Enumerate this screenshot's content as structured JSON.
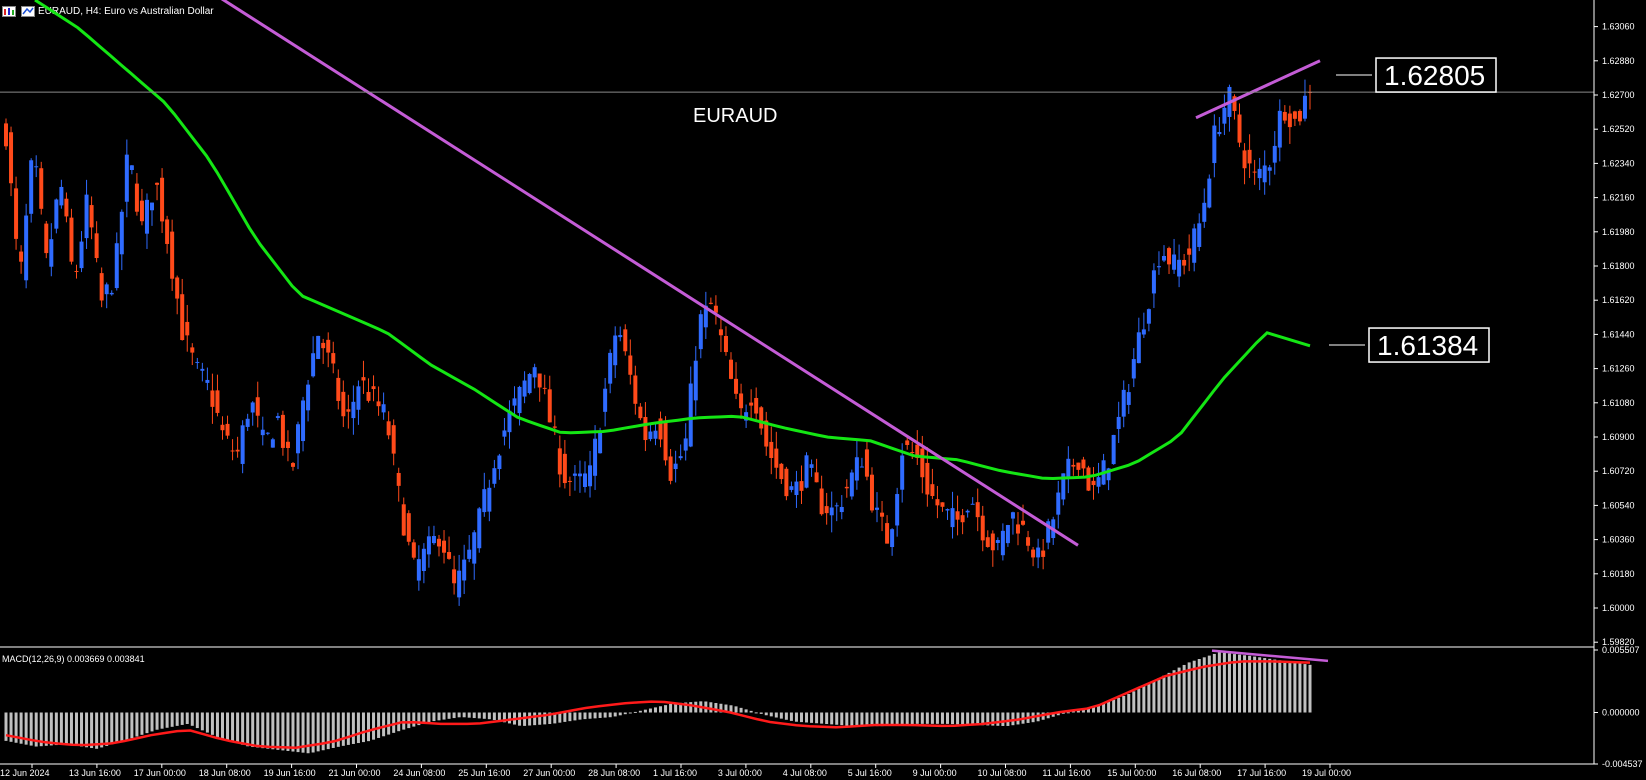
{
  "header": {
    "symbol_line": "EURAUD, H4:  Euro vs Australian Dollar"
  },
  "chart_data": [
    {
      "type": "candlestick",
      "annotation_text": "EURAUD",
      "colors": {
        "bull": "#2f6bff",
        "bear": "#ff4a1a",
        "ma": "#14e614",
        "trendline": "#c45cd6",
        "grid": "#2a2a2a",
        "axis": "#ffffff",
        "hline": "#8a8a8a"
      },
      "ylim": [
        1.598,
        1.632
      ],
      "y_ticks": [
        "1.63060",
        "1.62880",
        "1.62700",
        "1.62520",
        "1.62340",
        "1.62160",
        "1.61980",
        "1.61800",
        "1.61620",
        "1.61440",
        "1.61260",
        "1.61080",
        "1.60900",
        "1.60720",
        "1.60540",
        "1.60360",
        "1.60180",
        "1.60000",
        "1.59820"
      ],
      "x_ticks": [
        "12 Jun 2024",
        "13 Jun 16:00",
        "17 Jun 00:00",
        "18 Jun 08:00",
        "19 Jun 16:00",
        "21 Jun 00:00",
        "24 Jun 08:00",
        "25 Jun 16:00",
        "27 Jun 00:00",
        "28 Jun 08:00",
        "1 Jul 16:00",
        "3 Jul 00:00",
        "4 Jul 08:00",
        "5 Jul 16:00",
        "9 Jul 00:00",
        "10 Jul 08:00",
        "11 Jul 16:00",
        "15 Jul 00:00",
        "16 Jul 08:00",
        "17 Jul 16:00",
        "19 Jul 00:00"
      ],
      "current_price": "1.62805",
      "ma_price": "1.61384",
      "close_anchors": [
        1.625,
        1.617,
        1.624,
        1.618,
        1.6225,
        1.617,
        1.6215,
        1.616,
        1.6175,
        1.624,
        1.62,
        1.6225,
        1.619,
        1.6145,
        1.6125,
        1.6115,
        1.609,
        1.608,
        1.611,
        1.6085,
        1.61,
        1.607,
        1.6115,
        1.6145,
        1.6125,
        1.6095,
        1.612,
        1.611,
        1.61,
        1.6055,
        1.602,
        1.603,
        1.604,
        1.601,
        1.6025,
        1.605,
        1.608,
        1.61,
        1.6115,
        1.613,
        1.61,
        1.607,
        1.6065,
        1.607,
        1.611,
        1.615,
        1.612,
        1.609,
        1.61,
        1.607,
        1.6085,
        1.615,
        1.616,
        1.613,
        1.61,
        1.6115,
        1.6085,
        1.607,
        1.606,
        1.6075,
        1.6055,
        1.605,
        1.6065,
        1.608,
        1.605,
        1.6035,
        1.6085,
        1.608,
        1.606,
        1.605,
        1.6045,
        1.606,
        1.604,
        1.603,
        1.605,
        1.604,
        1.6025,
        1.6045,
        1.607,
        1.608,
        1.606,
        1.6075,
        1.61,
        1.613,
        1.616,
        1.619,
        1.618,
        1.6185,
        1.6205,
        1.625,
        1.627,
        1.624,
        1.6225,
        1.6235,
        1.6265,
        1.6255,
        1.6275
      ],
      "ma_anchors": [
        1.632,
        1.6305,
        1.6285,
        1.6265,
        1.6235,
        1.6195,
        1.6165,
        1.6155,
        1.6145,
        1.6128,
        1.6115,
        1.61,
        1.6092,
        1.6093,
        1.6097,
        1.61,
        1.6101,
        1.6095,
        1.609,
        1.6088,
        1.608,
        1.6078,
        1.6072,
        1.6068,
        1.6069,
        1.6076,
        1.609,
        1.612,
        1.6145,
        1.6138
      ]
    },
    {
      "type": "histogram_line",
      "label": "MACD(12,26,9) 0.003669 0.003841",
      "y_ticks": [
        "0.005507",
        "0.000000",
        "-0.004537"
      ],
      "ylim": [
        -0.004537,
        0.005507
      ],
      "colors": {
        "hist": "#c0c0c0",
        "signal": "#ff1a1a",
        "trendline": "#c45cd6"
      },
      "hist_anchors": [
        -0.0025,
        -0.003,
        -0.0028,
        -0.0032,
        -0.0024,
        -0.0015,
        -0.001,
        -0.0022,
        -0.003,
        -0.0033,
        -0.0036,
        -0.003,
        -0.0025,
        -0.0016,
        -0.0008,
        -0.0004,
        -0.0006,
        -0.0012,
        -0.001,
        -0.0006,
        -0.0004,
        0.0002,
        0.0008,
        0.001,
        0.0006,
        -0.0002,
        -0.0008,
        -0.001,
        -0.0012,
        -0.0012,
        -0.001,
        -0.001,
        -0.0011,
        -0.0012,
        -0.0008,
        0.0,
        0.0006,
        0.0016,
        0.003,
        0.0044,
        0.0053,
        0.005,
        0.0046,
        0.0042
      ],
      "signal_anchors": [
        -0.002,
        -0.0026,
        -0.0029,
        -0.0027,
        -0.002,
        -0.0015,
        -0.0024,
        -0.003,
        -0.0031,
        -0.0026,
        -0.0016,
        -0.0008,
        -0.001,
        -0.001,
        -0.0006,
        -0.0002,
        0.0004,
        0.0008,
        0.001,
        0.0006,
        0.0,
        -0.0008,
        -0.0012,
        -0.0013,
        -0.0011,
        -0.0011,
        -0.0012,
        -0.001,
        -0.0006,
        0.0,
        0.0004,
        0.0018,
        0.0032,
        0.004,
        0.0045,
        0.0045,
        0.0044
      ]
    }
  ]
}
